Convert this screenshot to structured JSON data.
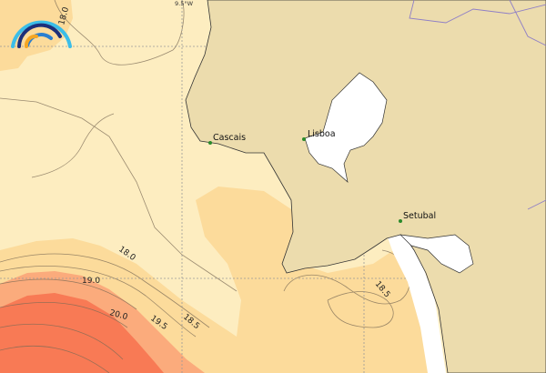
{
  "map": {
    "grid_label": "9.5°W",
    "cities": [
      {
        "name": "Cascais"
      },
      {
        "name": "Lisboa"
      },
      {
        "name": "Setubal"
      }
    ],
    "contour_labels": [
      "18.0",
      "18.0",
      "19.0",
      "20.0",
      "19.5",
      "18.5",
      "18.5"
    ],
    "colors": {
      "sea_light": "#fdedc0",
      "sea_mid": "#fcdb9b",
      "sea_warm": "#fbab7c",
      "sea_hot": "#f87a55",
      "land": "#ecdcad",
      "river": "#8f7fc6",
      "city_marker": "#2a8a2a"
    },
    "logo": "wave-arcs-logo"
  }
}
